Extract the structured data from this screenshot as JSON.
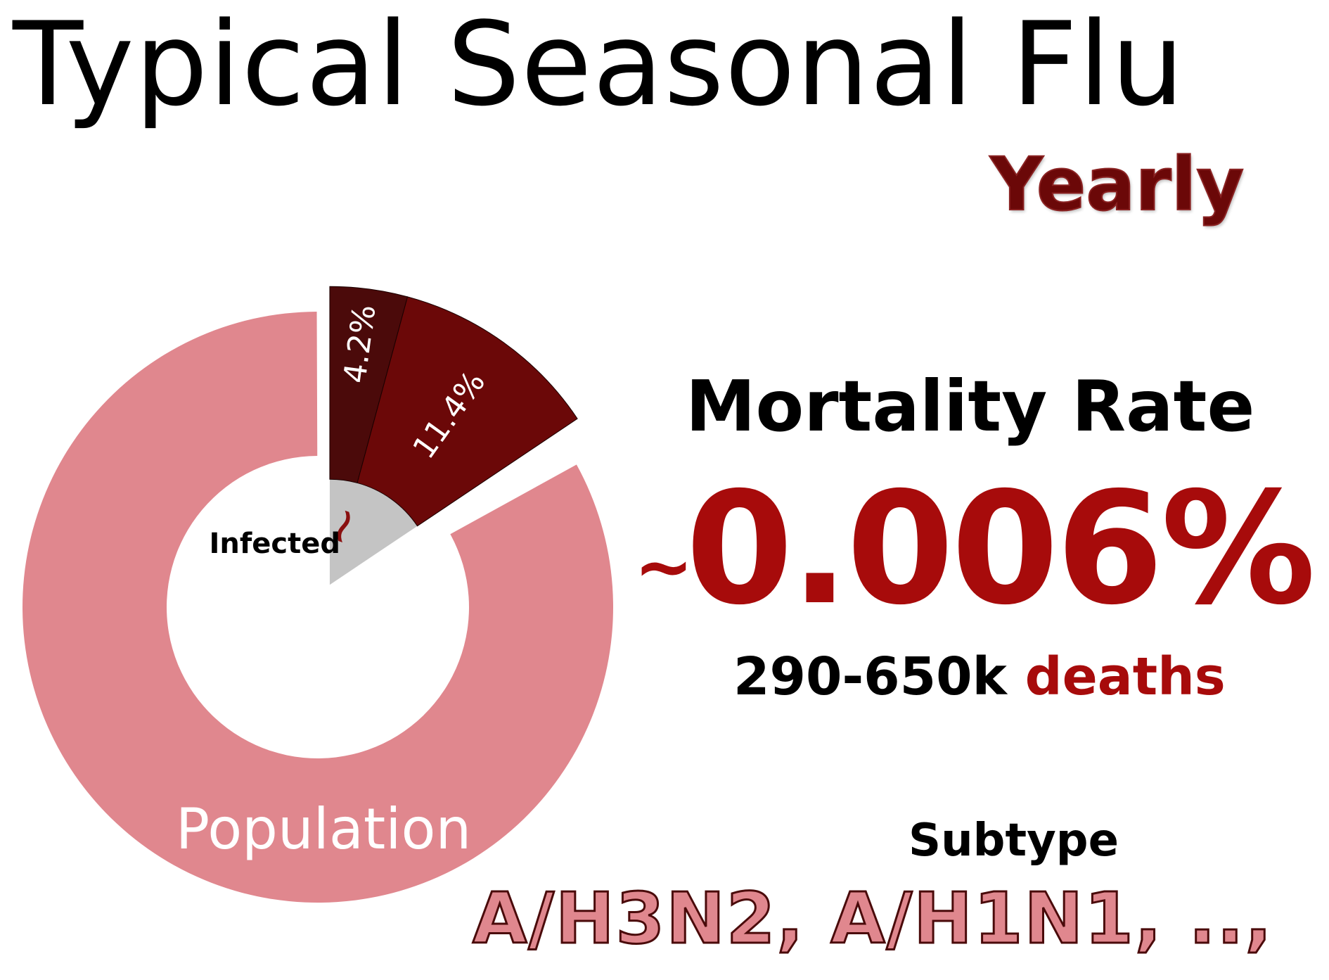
{
  "title": "Typical Seasonal Flu",
  "subtitle": "Yearly",
  "chart_data": {
    "type": "pie",
    "slices": [
      {
        "label": "4.2%",
        "value": 4.2,
        "color": "#4b0a0a"
      },
      {
        "label": "11.4%",
        "value": 11.4,
        "color": "#6b0808"
      },
      {
        "label": "Population",
        "value": 84.4,
        "color": "#e0878e"
      }
    ],
    "inner_ring": [
      {
        "label": "Infected",
        "value": 15.6,
        "color": "#c4c4c4"
      }
    ],
    "annotations": [
      "~",
      "Infected"
    ]
  },
  "mortality": {
    "label": "Mortality Rate",
    "tilde": "~",
    "value": "0.006%",
    "deaths_count": "290-650k",
    "deaths_word": "deaths"
  },
  "subtype": {
    "label": "Subtype",
    "value": "A/H3N2, A/H1N1, ..,"
  },
  "colors": {
    "dark_red": "#4b0a0a",
    "red": "#6b0808",
    "accent_red": "#a70b0b",
    "pink": "#e0878e",
    "grey": "#c4c4c4"
  }
}
